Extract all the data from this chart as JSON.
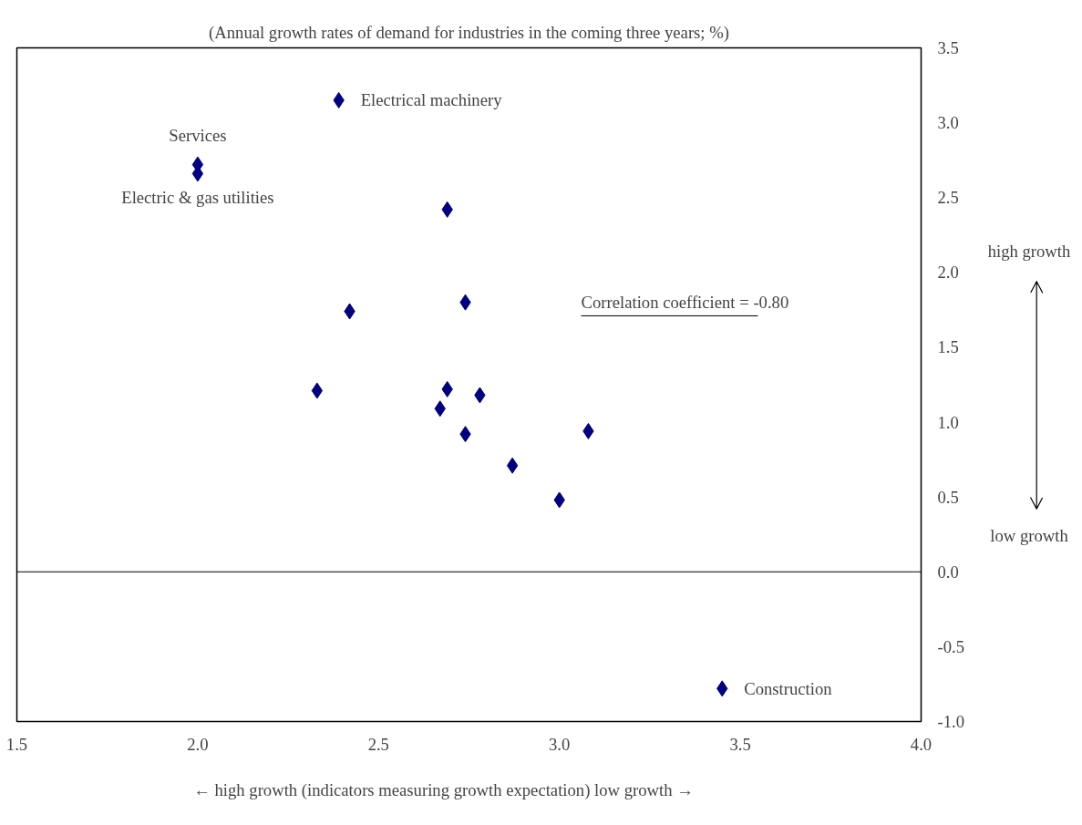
{
  "chart_data": {
    "type": "scatter",
    "ylabel": "(Annual growth rates of demand for industries in the coming three years; %)",
    "xlabel": "←    high growth    (indicators measuring growth expectation)    low growth    →",
    "x": [
      2.39,
      2.0,
      2.0,
      2.69,
      2.74,
      2.42,
      2.33,
      2.69,
      2.78,
      2.67,
      2.74,
      3.08,
      2.87,
      3.0,
      3.45
    ],
    "series": [
      {
        "color": "#000080",
        "values": [
          3.15,
          2.72,
          2.66,
          2.42,
          1.8,
          1.74,
          1.21,
          1.22,
          1.18,
          1.09,
          0.92,
          0.94,
          0.71,
          0.48,
          -0.78
        ]
      }
    ],
    "marker": "diamond",
    "grid": false,
    "xlim": [
      1.5,
      4.0
    ],
    "ylim": [
      -1.0,
      3.5
    ],
    "xticks": [
      {
        "value": 1.5,
        "label": "1.5"
      },
      {
        "value": 2,
        "label": "2.0"
      },
      {
        "value": 2.5,
        "label": "2.5"
      },
      {
        "value": 3,
        "label": "3.0"
      },
      {
        "value": 3.5,
        "label": "3.5"
      },
      {
        "value": 4,
        "label": "4.0"
      }
    ],
    "yticks": [
      {
        "value": -1,
        "label": "-1.0"
      },
      {
        "value": -0.5,
        "label": "-0.5"
      },
      {
        "value": 0,
        "label": "0.0"
      },
      {
        "value": 0.5,
        "label": "0.5"
      },
      {
        "value": 1,
        "label": "1.0"
      },
      {
        "value": 1.5,
        "label": "1.5"
      },
      {
        "value": 2,
        "label": "2.0"
      },
      {
        "value": 2.5,
        "label": "2.5"
      },
      {
        "value": 3,
        "label": "3.0"
      },
      {
        "value": 3.5,
        "label": "3.5"
      }
    ],
    "ref_lines": [
      {
        "axis": "y",
        "value": 0,
        "color": "#000000"
      }
    ],
    "annotations": [
      {
        "text": "Electrical machinery",
        "x": 2.39,
        "y": 3.15
      },
      {
        "text": "Services",
        "x": 2.0,
        "y": 2.72
      },
      {
        "text": "Electric & gas utilities",
        "x": 2.0,
        "y": 2.66
      },
      {
        "text": "Construction",
        "x": 3.45,
        "y": -0.78
      },
      "Correlation coefficient = -0.80",
      "high growth",
      "low growth"
    ]
  }
}
